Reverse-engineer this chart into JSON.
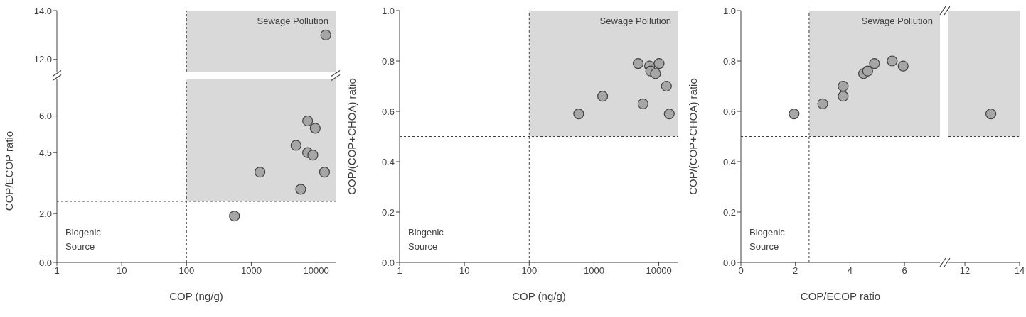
{
  "chart_data": [
    {
      "type": "scatter",
      "log": "x",
      "marker": "circle",
      "color": "#a6a6a6",
      "tick_labels": "y",
      "x": [
        14100
      ],
      "values": [
        13.0
      ],
      "xlim": [
        1,
        20000
      ],
      "xticks": [
        1,
        10,
        100,
        1000,
        10000
      ],
      "ylim": [
        11.5,
        14
      ],
      "yticks": [
        {
          "value": 12,
          "label": "12.0"
        },
        {
          "value": 14,
          "label": "14.0"
        }
      ],
      "ref_lines": [
        {
          "axis": "x",
          "value": 100,
          "line_style": "dashed",
          "color": "#404040"
        }
      ],
      "bands": [
        {
          "axis": "y",
          "from": 11.5,
          "to": 14,
          "label": "Sewage Pollution",
          "color": "#d9d9d9"
        }
      ]
    },
    {
      "type": "scatter",
      "xlabel": "COP (ng/g)",
      "ylabel": "COP/ECOP ratio",
      "log": "x",
      "marker": "circle",
      "color": "#a6a6a6",
      "x": [
        550,
        1360,
        4900,
        5800,
        7400,
        7400,
        8900,
        9700,
        13500
      ],
      "values": [
        1.9,
        3.7,
        4.8,
        3.0,
        5.8,
        4.5,
        4.4,
        5.5,
        3.7
      ],
      "xlim": [
        1,
        20000
      ],
      "xticks": [
        1,
        10,
        100,
        1000,
        10000
      ],
      "ylim": [
        0,
        7.5
      ],
      "yticks": [
        {
          "value": 0,
          "label": "0.0"
        },
        {
          "value": 2,
          "label": "2.0"
        },
        {
          "value": 4.5,
          "label": "4.5"
        },
        {
          "value": 6,
          "label": "6.0"
        }
      ],
      "ref_lines": [
        {
          "axis": "x",
          "value": 100,
          "line_style": "dashed",
          "color": "#404040"
        },
        {
          "axis": "y",
          "value": 2.5,
          "line_style": "dashed",
          "color": "#404040"
        }
      ],
      "bands": [
        {
          "axis": "y",
          "from": 2.5,
          "to": 7.5,
          "color": "#d9d9d9"
        }
      ],
      "annotations": [
        "Biogenic Source"
      ]
    },
    {
      "type": "scatter",
      "xlabel": "COP (ng/g)",
      "ylabel": "COP/(COP+CHOA) ratio",
      "log": "x",
      "marker": "circle",
      "color": "#a6a6a6",
      "x": [
        580,
        1360,
        4800,
        5700,
        7200,
        7500,
        8900,
        10100,
        13100,
        14500
      ],
      "values": [
        0.59,
        0.66,
        0.79,
        0.63,
        0.78,
        0.76,
        0.75,
        0.79,
        0.7,
        0.59
      ],
      "xlim": [
        1,
        20000
      ],
      "xticks": [
        1,
        10,
        100,
        1000,
        10000
      ],
      "ylim": [
        0,
        1
      ],
      "yticks": [
        {
          "value": 0,
          "label": "0.0"
        },
        {
          "value": 0.2,
          "label": "0.2"
        },
        {
          "value": 0.4,
          "label": "0.4"
        },
        {
          "value": 0.6,
          "label": "0.6"
        },
        {
          "value": 0.8,
          "label": "0.8"
        },
        {
          "value": 1,
          "label": "1.0"
        }
      ],
      "ref_lines": [
        {
          "axis": "x",
          "value": 100,
          "line_style": "dashed",
          "color": "#404040"
        },
        {
          "axis": "y",
          "value": 0.5,
          "line_style": "dashed",
          "color": "#404040"
        }
      ],
      "bands": [
        {
          "axis": "y",
          "from": 0.5,
          "to": 1,
          "label": "Sewage Pollution",
          "color": "#d9d9d9"
        }
      ],
      "annotations": [
        "Biogenic Source"
      ]
    },
    {
      "type": "scatter",
      "xlabel": "COP/ECOP ratio",
      "ylabel": "COP/(COP+CHOA) ratio",
      "marker": "circle",
      "color": "#a6a6a6",
      "x": [
        1.95,
        3.0,
        3.75,
        3.75,
        4.5,
        4.65,
        4.9,
        5.55,
        5.95
      ],
      "values": [
        0.59,
        0.63,
        0.7,
        0.66,
        0.75,
        0.76,
        0.79,
        0.8,
        0.78
      ],
      "xlim": [
        0,
        7.3
      ],
      "xticks": [
        0,
        2,
        4,
        6
      ],
      "ylim": [
        0,
        1
      ],
      "yticks": [
        {
          "value": 0,
          "label": "0.0"
        },
        {
          "value": 0.2,
          "label": "0.2"
        },
        {
          "value": 0.4,
          "label": "0.4"
        },
        {
          "value": 0.6,
          "label": "0.6"
        },
        {
          "value": 0.8,
          "label": "0.8"
        },
        {
          "value": 1,
          "label": "1.0"
        }
      ],
      "ref_lines": [
        {
          "axis": "x",
          "value": 2.5,
          "line_style": "dashed",
          "color": "#404040"
        },
        {
          "axis": "y",
          "value": 0.5,
          "line_style": "dashed",
          "color": "#404040"
        }
      ],
      "bands": [
        {
          "axis": "y",
          "from": 0.5,
          "to": 1,
          "label": "Sewage Pollution",
          "color": "#d9d9d9"
        }
      ],
      "annotations": [
        "Biogenic Source"
      ]
    },
    {
      "type": "scatter",
      "marker": "circle",
      "color": "#a6a6a6",
      "tick_labels": "x",
      "x": [
        12.95
      ],
      "values": [
        0.59
      ],
      "xlim": [
        11.4,
        14
      ],
      "xticks": [
        12,
        14
      ],
      "ylim": [
        0,
        1
      ],
      "ref_lines": [
        {
          "axis": "y",
          "value": 0.5,
          "line_style": "dashed",
          "color": "#404040"
        }
      ],
      "bands": [
        {
          "axis": "y",
          "from": 0.5,
          "to": 1,
          "color": "#d9d9d9"
        }
      ]
    }
  ]
}
